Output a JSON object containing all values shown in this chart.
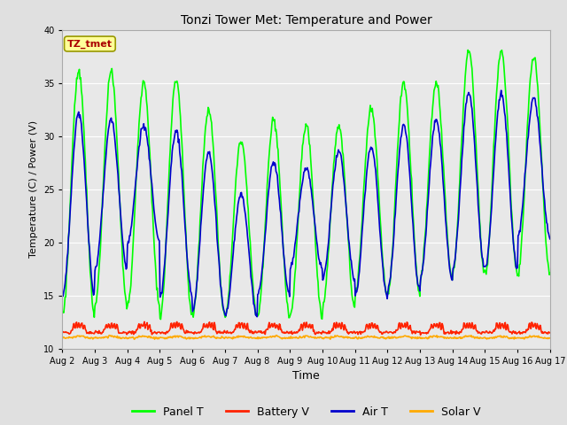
{
  "title": "Tonzi Tower Met: Temperature and Power",
  "xlabel": "Time",
  "ylabel": "Temperature (C) / Power (V)",
  "ylim": [
    10,
    40
  ],
  "n_days": 15,
  "xtick_labels": [
    "Aug 2",
    "Aug 3",
    "Aug 4",
    "Aug 5",
    "Aug 6",
    "Aug 7",
    "Aug 8",
    "Aug 9",
    "Aug 10",
    "Aug 11",
    "Aug 12",
    "Aug 13",
    "Aug 14",
    "Aug 15",
    "Aug 16",
    "Aug 17"
  ],
  "yticks": [
    10,
    15,
    20,
    25,
    30,
    35,
    40
  ],
  "legend_entries": [
    "Panel T",
    "Battery V",
    "Air T",
    "Solar V"
  ],
  "legend_colors": [
    "#00ff00",
    "#ff2200",
    "#0000cc",
    "#ffaa00"
  ],
  "line_colors": {
    "panel_t": "#00ff00",
    "battery_v": "#ff2200",
    "air_t": "#0000cc",
    "solar_v": "#ffaa00"
  },
  "line_widths": {
    "panel_t": 1.2,
    "battery_v": 1.2,
    "air_t": 1.2,
    "solar_v": 1.2
  },
  "plot_bg_color": "#e8e8e8",
  "outer_bg_color": "#e0e0e0",
  "grid_color": "#ffffff",
  "annotation_text": "TZ_tmet",
  "annotation_color": "#aa0000",
  "annotation_bg": "#ffff99",
  "annotation_border": "#999900",
  "panel_peaks": [
    36,
    36,
    35,
    35.5,
    32.5,
    29.5,
    31.5,
    31,
    31,
    32.5,
    35,
    35,
    38,
    38,
    37.5
  ],
  "panel_mins": [
    13,
    14,
    14,
    13,
    13,
    13,
    13,
    13,
    14,
    15,
    15,
    16.5,
    17,
    17,
    17
  ],
  "air_peaks": [
    32,
    31.5,
    31,
    30.5,
    28.5,
    24.5,
    27.5,
    27,
    28.5,
    29,
    31,
    31.5,
    34,
    34,
    33.5
  ],
  "air_mins": [
    15,
    17.5,
    20,
    15,
    13.5,
    13,
    15,
    17.5,
    16.5,
    15,
    15.5,
    16.5,
    17.5,
    17.5,
    20.5
  ],
  "pts_per_day": 48
}
